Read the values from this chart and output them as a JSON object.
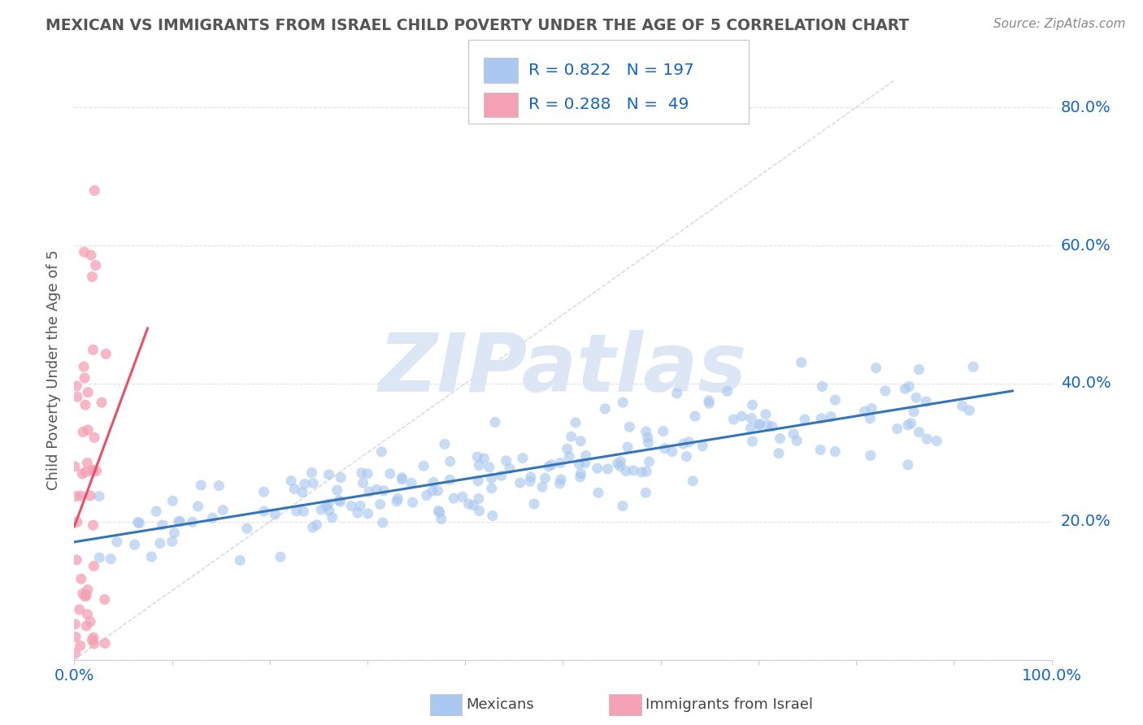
{
  "title": "MEXICAN VS IMMIGRANTS FROM ISRAEL CHILD POVERTY UNDER THE AGE OF 5 CORRELATION CHART",
  "source": "Source: ZipAtlas.com",
  "ylabel": "Child Poverty Under the Age of 5",
  "watermark": "ZIPatlas",
  "xlim": [
    0,
    1.0
  ],
  "ylim": [
    0,
    0.84
  ],
  "xticks": [
    0.0,
    0.1,
    0.2,
    0.3,
    0.4,
    0.5,
    0.6,
    0.7,
    0.8,
    0.9,
    1.0
  ],
  "yticks": [
    0.0,
    0.2,
    0.4,
    0.6,
    0.8
  ],
  "mexican_color": "#aac8f0",
  "israel_color": "#f4a0b5",
  "mexican_R": 0.822,
  "mexican_N": 197,
  "israel_R": 0.288,
  "israel_N": 49,
  "legend_R_color": "#1565c0",
  "background_color": "#ffffff",
  "grid_color": "#e0e0e0",
  "title_color": "#555555",
  "axis_color": "#1565c0",
  "watermark_color": "#dce6f5",
  "trend_line_mexican_color": "#3575b5",
  "trend_line_israel_color": "#e8506a",
  "diagonal_color": "#cccccc"
}
